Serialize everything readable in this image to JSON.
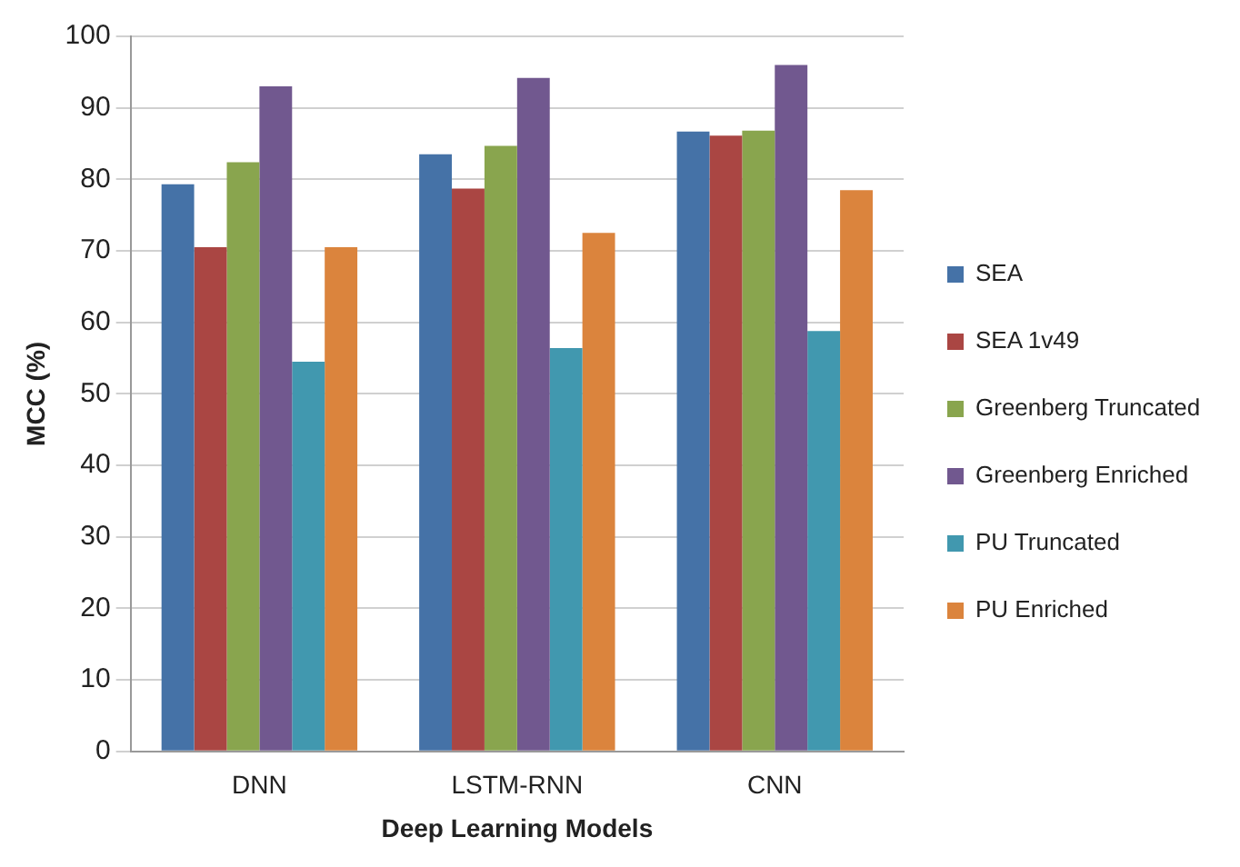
{
  "chart_data": {
    "type": "bar",
    "xlabel": "Deep Learning Models",
    "ylabel": "MCC (%)",
    "categories": [
      "DNN",
      "LSTM-RNN",
      "CNN"
    ],
    "series": [
      {
        "name": "SEA",
        "color": "#4572a7",
        "values": [
          79.3,
          83.5,
          86.7
        ]
      },
      {
        "name": "SEA 1v49",
        "color": "#aa4643",
        "values": [
          70.5,
          78.7,
          86.1
        ]
      },
      {
        "name": "Greenberg Truncated",
        "color": "#89a54e",
        "values": [
          82.4,
          84.7,
          86.8
        ]
      },
      {
        "name": "Greenberg Enriched",
        "color": "#71588f",
        "values": [
          93,
          94.2,
          96
        ]
      },
      {
        "name": "PU Truncated",
        "color": "#4198af",
        "values": [
          54.5,
          56.4,
          58.8
        ]
      },
      {
        "name": "PU Enriched",
        "color": "#db843d",
        "values": [
          70.5,
          72.5,
          78.5
        ]
      }
    ],
    "ylim": [
      0,
      100
    ],
    "yticks": [
      0,
      10,
      20,
      30,
      40,
      50,
      60,
      70,
      80,
      90,
      100
    ],
    "grid": "y",
    "legend": "right"
  }
}
